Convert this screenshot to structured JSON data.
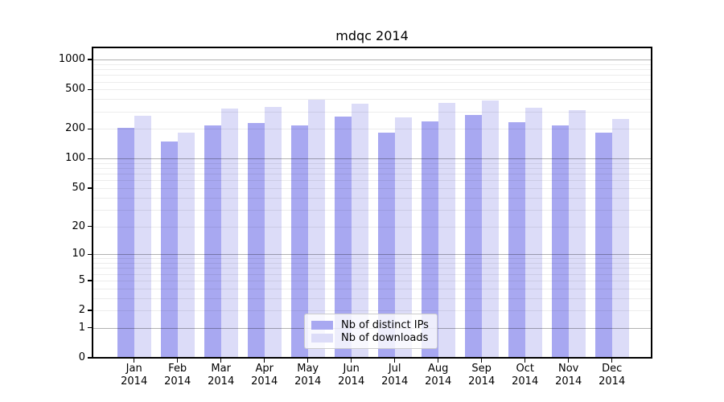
{
  "chart_data": {
    "type": "bar",
    "title": "mdqc 2014",
    "categories": [
      "Jan",
      "Feb",
      "Mar",
      "Apr",
      "May",
      "Jun",
      "Jul",
      "Aug",
      "Sep",
      "Oct",
      "Nov",
      "Dec"
    ],
    "category_year": "2014",
    "series": [
      {
        "name": "Nb of distinct IPs",
        "color": "#a8a8f1",
        "values": [
          205,
          150,
          215,
          230,
          215,
          265,
          185,
          240,
          275,
          235,
          215,
          185
        ]
      },
      {
        "name": "Nb of downloads",
        "color": "#dcdcf8",
        "values": [
          270,
          185,
          320,
          335,
          395,
          360,
          260,
          365,
          390,
          330,
          310,
          250
        ]
      }
    ],
    "y_axis": {
      "scale": "log1p",
      "labeled_ticks": [
        0,
        1,
        2,
        5,
        10,
        20,
        50,
        100,
        200,
        500,
        1000
      ],
      "major_gridlines": [
        1,
        10,
        100,
        1000
      ],
      "ylim": [
        0,
        1330
      ]
    },
    "legend_position": "lower center",
    "grid": true
  },
  "colors": {
    "bar_dark": "#a8a8f1",
    "bar_light": "#dcdcf8",
    "major_grid": "rgba(0,0,0,0.30)",
    "minor_grid": "rgba(0,0,0,0.075)",
    "spine": "#000000",
    "legend_border": "#cccccc"
  }
}
